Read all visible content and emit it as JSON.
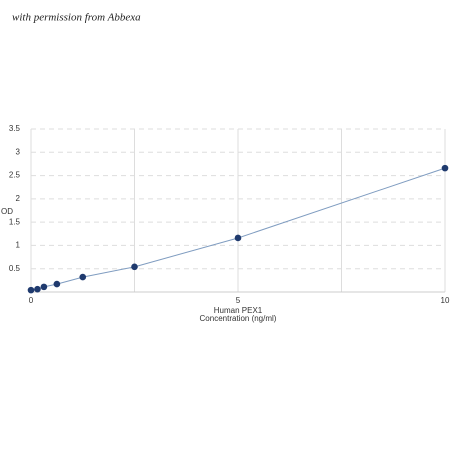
{
  "chart_data": {
    "type": "line-scatter",
    "watermark": "with permission from Abbexa",
    "x_label": [
      "Human PEX1",
      "Concentration (ng/ml)"
    ],
    "y_label": "OD",
    "x": [
      0,
      0.156,
      0.312,
      0.625,
      1.25,
      2.5,
      5,
      10
    ],
    "series": [
      {
        "name": "Human PEX1",
        "color": "#1f3a6e",
        "line_color": "#7f9cc0",
        "values": [
          0.04,
          0.06,
          0.11,
          0.17,
          0.32,
          0.54,
          1.16,
          2.66
        ]
      }
    ],
    "xlim": [
      0,
      10
    ],
    "xticks": [
      0,
      5,
      10
    ],
    "x_minor_grid": [
      2.5,
      7.5
    ],
    "ylim": [
      0,
      3.5
    ],
    "yticks": [
      0.5,
      1,
      1.5,
      2,
      2.5,
      3,
      3.5
    ],
    "grid": true
  }
}
